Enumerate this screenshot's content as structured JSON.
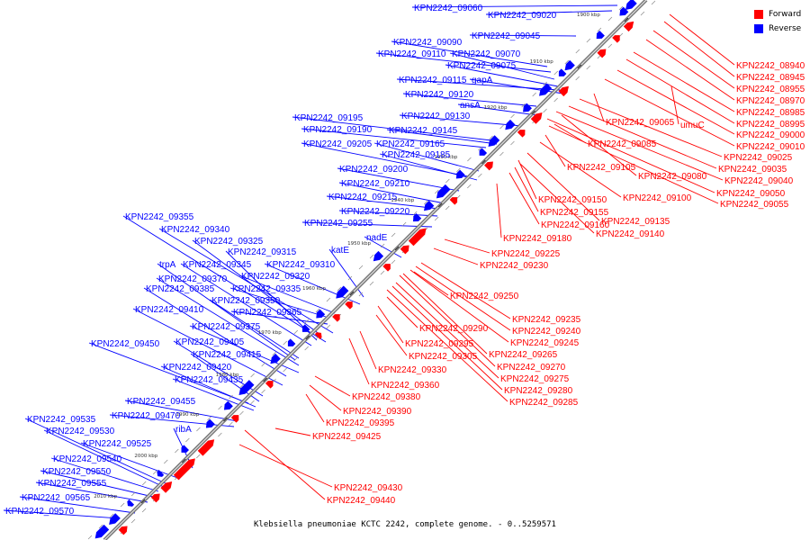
{
  "colors": {
    "forward": "#ff0000",
    "reverse": "#0000ff",
    "axis": "#707070"
  },
  "legend": {
    "forward": "Forward",
    "reverse": "Reverse"
  },
  "caption": "Klebsiella pneumoniae KCTC 2242, complete genome. - 0..5259571",
  "ticks": [
    "1900 kbp",
    "1910 kbp",
    "1920 kbp",
    "1930 kbp",
    "1940 kbp",
    "1950 kbp",
    "1960 kbp",
    "1970 kbp",
    "1980 kbp",
    "1990 kbp",
    "2000 kbp",
    "2010 kbp"
  ],
  "reverse_labels": [
    "KPN2242_09060",
    "KPN2242_09020",
    "KPN2242_09045",
    "KPN2242_09090",
    "KPN2242_09110",
    "KPN2242_09070",
    "KPN2242_09075",
    "KPN2242_09115",
    "gapA",
    "KPN2242_09120",
    "ansA",
    "KPN2242_09195",
    "KPN2242_09130",
    "KPN2242_09190",
    "KPN2242_09145",
    "KPN2242_09205",
    "KPN2242_09165",
    "KPN2242_09185",
    "KPN2242_09200",
    "KPN2242_09210",
    "KPN2242_09215",
    "KPN2242_09220",
    "KPN2242_09355",
    "KPN2242_09255",
    "KPN2242_09340",
    "nadE",
    "KPN2242_09325",
    "katE",
    "KPN2242_09315",
    "trpA",
    "KPN2242_09345",
    "KPN2242_09310",
    "KPN2242_09370",
    "KPN2242_09320",
    "KPN2242_09385",
    "KPN2242_09335",
    "KPN2242_09350",
    "KPN2242_09410",
    "KPN2242_09365",
    "KPN2242_09375",
    "KPN2242_09450",
    "KPN2242_09405",
    "KPN2242_09415",
    "KPN2242_09420",
    "KPN2242_09435",
    "KPN2242_09455",
    "KPN2242_09470",
    "KPN2242_09535",
    "KPN2242_09530",
    "ribA",
    "KPN2242_09525",
    "KPN2242_09540",
    "KPN2242_09550",
    "KPN2242_09555",
    "KPN2242_09565",
    "KPN2242_09570"
  ],
  "forward_labels": [
    "KPN2242_08940",
    "KPN2242_08945",
    "KPN2242_08955",
    "KPN2242_08970",
    "KPN2242_08985",
    "KPN2242_08995",
    "KPN2242_09065",
    "umuC",
    "KPN2242_09000",
    "KPN2242_09010",
    "KPN2242_09085",
    "KPN2242_09025",
    "KPN2242_09035",
    "KPN2242_09105",
    "KPN2242_09080",
    "KPN2242_09040",
    "KPN2242_09050",
    "KPN2242_09100",
    "KPN2242_09055",
    "KPN2242_09150",
    "KPN2242_09155",
    "KPN2242_09135",
    "KPN2242_09160",
    "KPN2242_09140",
    "KPN2242_09180",
    "KPN2242_09225",
    "KPN2242_09230",
    "KPN2242_09250",
    "KPN2242_09235",
    "KPN2242_09290",
    "KPN2242_09240",
    "KPN2242_09295",
    "KPN2242_09245",
    "KPN2242_09305",
    "KPN2242_09265",
    "KPN2242_09270",
    "KPN2242_09330",
    "KPN2242_09275",
    "KPN2242_09360",
    "KPN2242_09280",
    "KPN2242_09380",
    "KPN2242_09285",
    "KPN2242_09390",
    "KPN2242_09395",
    "KPN2242_09425",
    "KPN2242_09430",
    "KPN2242_09440"
  ]
}
